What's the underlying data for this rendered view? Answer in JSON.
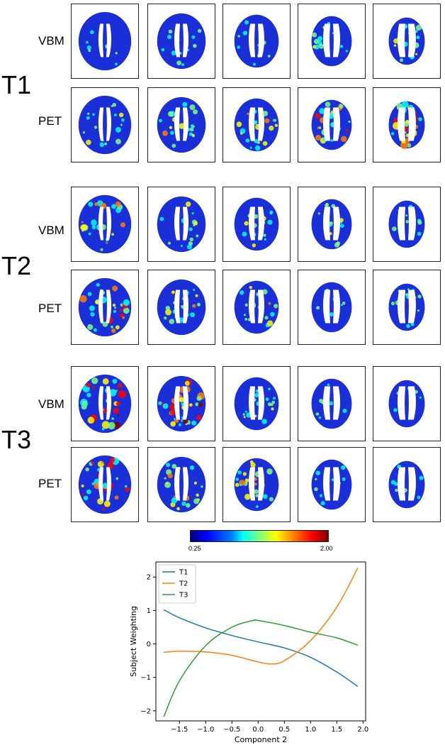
{
  "groups": [
    {
      "label": "T1",
      "rows": [
        {
          "label": "VBM",
          "panels": [
            {
              "hot": 0.1
            },
            {
              "hot": 0.2
            },
            {
              "hot": 0.1
            },
            {
              "hot": 0.3
            },
            {
              "hot": 0.45
            }
          ]
        },
        {
          "label": "PET",
          "panels": [
            {
              "hot": 0.35
            },
            {
              "hot": 0.45
            },
            {
              "hot": 0.55
            },
            {
              "hot": 0.7
            },
            {
              "hot": 0.9
            }
          ]
        }
      ]
    },
    {
      "label": "T2",
      "rows": [
        {
          "label": "VBM",
          "panels": [
            {
              "hot": 0.6
            },
            {
              "hot": 0.3
            },
            {
              "hot": 0.3
            },
            {
              "hot": 0.4
            },
            {
              "hot": 0.2
            }
          ]
        },
        {
          "label": "PET",
          "panels": [
            {
              "hot": 0.8
            },
            {
              "hot": 0.5
            },
            {
              "hot": 0.45
            },
            {
              "hot": 0.2
            },
            {
              "hot": 0.25
            }
          ]
        }
      ]
    },
    {
      "label": "T3",
      "rows": [
        {
          "label": "VBM",
          "panels": [
            {
              "hot": 0.95
            },
            {
              "hot": 0.9
            },
            {
              "hot": 0.35
            },
            {
              "hot": 0.1
            },
            {
              "hot": 0.1
            }
          ]
        },
        {
          "label": "PET",
          "panels": [
            {
              "hot": 0.8
            },
            {
              "hot": 0.5
            },
            {
              "hot": 0.5
            },
            {
              "hot": 0.25
            },
            {
              "hot": 0.15
            }
          ]
        }
      ]
    }
  ],
  "colorbar": {
    "min_label": "0.25",
    "max_label": "2.00",
    "colormap": "jet"
  },
  "chart_data": {
    "type": "line",
    "xlabel": "Component 2",
    "ylabel": "Subject Weighting",
    "xlim": [
      -1.95,
      2.05
    ],
    "ylim": [
      -2.3,
      2.45
    ],
    "xticks": [
      -1.5,
      -1.0,
      -0.5,
      0.0,
      0.5,
      1.0,
      1.5,
      2.0
    ],
    "xtick_labels": [
      "−1.5",
      "−1.0",
      "−0.5",
      "0.0",
      "0.5",
      "1.0",
      "1.5",
      "2.0"
    ],
    "yticks": [
      -2,
      -1,
      0,
      1,
      2
    ],
    "ytick_labels": [
      "−2",
      "−1",
      "0",
      "1",
      "2"
    ],
    "legend_position": "top-left",
    "series": [
      {
        "name": "T1",
        "color": "#1f77b4",
        "x": [
          -1.8,
          -1.5,
          -1.0,
          -0.5,
          0.0,
          0.5,
          1.0,
          1.5,
          1.9
        ],
        "y": [
          1.02,
          0.78,
          0.48,
          0.25,
          0.06,
          -0.12,
          -0.4,
          -0.84,
          -1.27
        ]
      },
      {
        "name": "T2",
        "color": "#ff7f0e",
        "x": [
          -1.8,
          -1.5,
          -1.0,
          -0.5,
          0.0,
          0.25,
          0.5,
          1.0,
          1.5,
          1.9
        ],
        "y": [
          -0.25,
          -0.22,
          -0.24,
          -0.34,
          -0.54,
          -0.6,
          -0.5,
          0.1,
          1.1,
          2.27
        ]
      },
      {
        "name": "T3",
        "color": "#2ca02c",
        "x": [
          -1.8,
          -1.5,
          -1.0,
          -0.5,
          -0.1,
          0.0,
          0.5,
          1.0,
          1.5,
          1.9
        ],
        "y": [
          -2.18,
          -1.1,
          -0.05,
          0.5,
          0.7,
          0.7,
          0.55,
          0.35,
          0.18,
          -0.04
        ]
      }
    ]
  }
}
